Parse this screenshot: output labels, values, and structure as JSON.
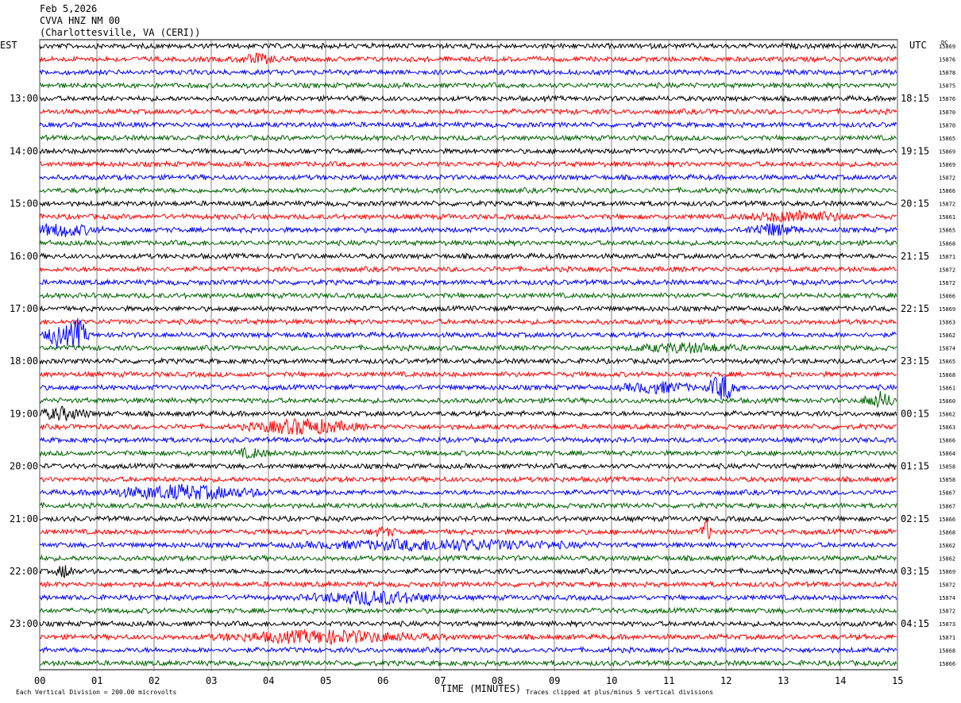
{
  "header": {
    "date": "Feb 5,2026",
    "station": "CVVA HNZ NM 00",
    "location": "(Charlottesville, VA (CERI))"
  },
  "labels": {
    "left_tz": "EST",
    "right_tz": "UTC",
    "dc": "DC",
    "xlabel": "TIME (MINUTES)",
    "scale_note": "Each Vertical Division =  200.00 microvolts",
    "clip_note": "Traces clipped at plus/minus 5 vertical divisions"
  },
  "chart_data": {
    "type": "line",
    "description": "helicorder",
    "x_ticks": [
      "00",
      "01",
      "02",
      "03",
      "04",
      "05",
      "06",
      "07",
      "08",
      "09",
      "10",
      "11",
      "12",
      "13",
      "14",
      "15"
    ],
    "xlim": [
      0,
      15
    ],
    "trace_colors": [
      "#000000",
      "#ff0000",
      "#0000ff",
      "#006400"
    ],
    "left_hour_labels": [
      "13:00",
      "14:00",
      "15:00",
      "16:00",
      "17:00",
      "18:00",
      "19:00",
      "20:00",
      "21:00",
      "22:00",
      "23:00"
    ],
    "right_hour_labels": [
      "18:15",
      "19:15",
      "20:15",
      "21:15",
      "22:15",
      "23:15",
      "00:15",
      "01:15",
      "02:15",
      "03:15",
      "04:15"
    ],
    "dc_offsets": [
      "15869",
      "15876",
      "15878",
      "15875",
      "15876",
      "15870",
      "15870",
      "15865",
      "15869",
      "15869",
      "15872",
      "15866",
      "15872",
      "15861",
      "15865",
      "15868",
      "15871",
      "15872",
      "15872",
      "15866",
      "15869",
      "15863",
      "15862",
      "15874",
      "15865",
      "15868",
      "15861",
      "15860",
      "15862",
      "15863",
      "15866",
      "15864",
      "15858",
      "15858",
      "15867",
      "15867",
      "15866",
      "15868",
      "15862",
      "15862",
      "15869",
      "15872",
      "15874",
      "15872",
      "15873",
      "15871",
      "15868",
      "15866"
    ],
    "events": [
      {
        "row": 1,
        "minute": 3.8,
        "amp": 5,
        "dur": 0.5
      },
      {
        "row": 14,
        "minute": 0.4,
        "amp": 7,
        "dur": 0.8
      },
      {
        "row": 14,
        "minute": 12.8,
        "amp": 7,
        "dur": 0.6
      },
      {
        "row": 13,
        "minute": 13.3,
        "amp": 6,
        "dur": 1.2
      },
      {
        "row": 22,
        "minute": 0.3,
        "amp": 14,
        "dur": 0.25
      },
      {
        "row": 22,
        "minute": 0.65,
        "amp": 20,
        "dur": 0.25
      },
      {
        "row": 23,
        "minute": 11.3,
        "amp": 5,
        "dur": 1.2
      },
      {
        "row": 26,
        "minute": 11.95,
        "amp": 16,
        "dur": 0.35
      },
      {
        "row": 26,
        "minute": 10.8,
        "amp": 6,
        "dur": 0.8
      },
      {
        "row": 27,
        "minute": 14.7,
        "amp": 9,
        "dur": 0.4
      },
      {
        "row": 28,
        "minute": 0.4,
        "amp": 7,
        "dur": 0.6
      },
      {
        "row": 29,
        "minute": 4.6,
        "amp": 9,
        "dur": 1.2
      },
      {
        "row": 31,
        "minute": 3.7,
        "amp": 5,
        "dur": 0.4
      },
      {
        "row": 34,
        "minute": 2.5,
        "amp": 8,
        "dur": 1.8
      },
      {
        "row": 37,
        "minute": 11.65,
        "amp": 14,
        "dur": 0.12
      },
      {
        "row": 37,
        "minute": 6.0,
        "amp": 5,
        "dur": 0.3
      },
      {
        "row": 38,
        "minute": 7.0,
        "amp": 6,
        "dur": 3.0
      },
      {
        "row": 40,
        "minute": 0.45,
        "amp": 8,
        "dur": 0.2
      },
      {
        "row": 42,
        "minute": 5.8,
        "amp": 8,
        "dur": 1.4
      },
      {
        "row": 45,
        "minute": 5.0,
        "amp": 7,
        "dur": 2.4
      }
    ]
  }
}
